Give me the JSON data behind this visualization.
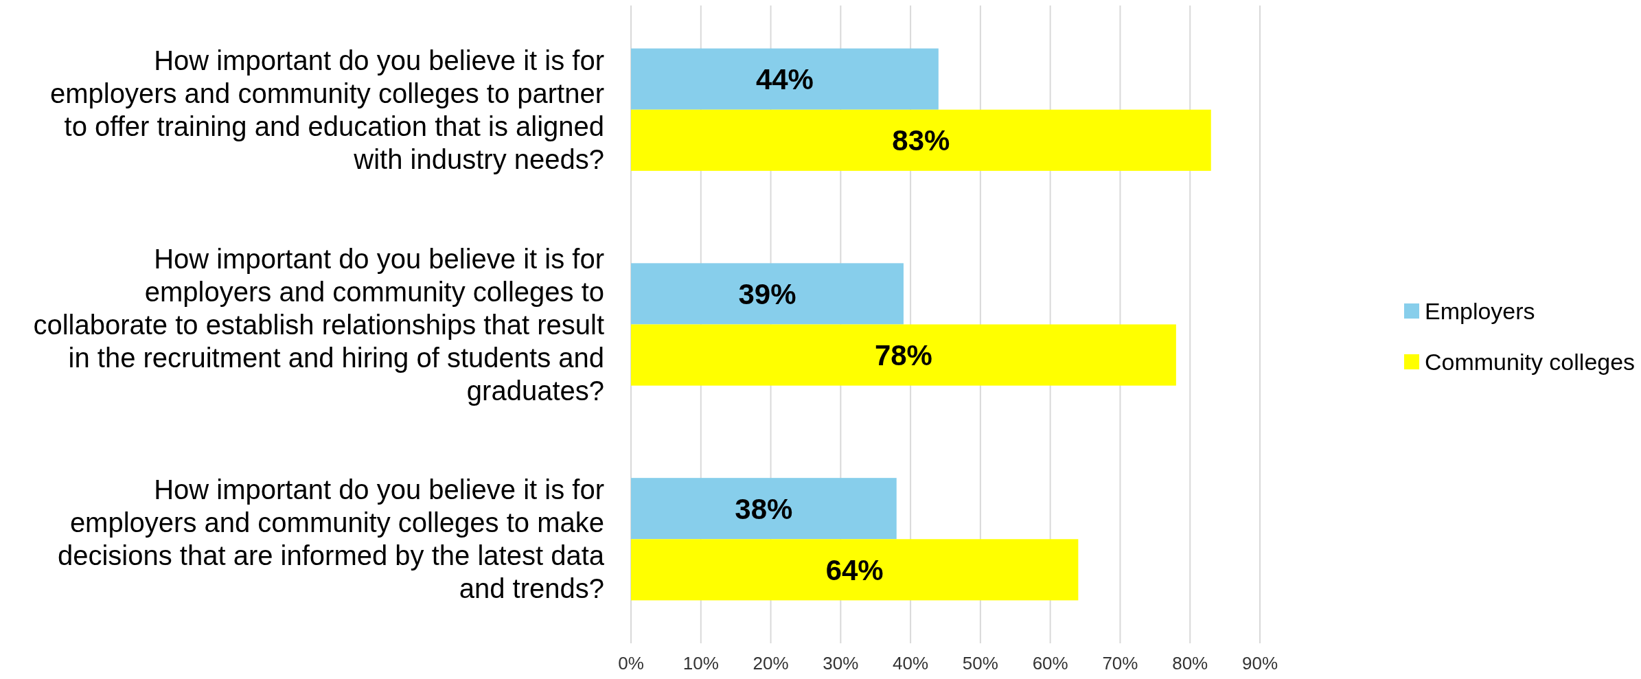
{
  "chart_data": {
    "type": "bar",
    "orientation": "horizontal",
    "categories": [
      "How important do you believe it is for employers and community colleges to partner to offer training and education that is aligned with industry needs?",
      "How important do you believe it is for employers and community colleges to collaborate to establish relationships that result in the recruitment and hiring of students and graduates?",
      "How important do you believe it is for employers and community colleges to make decisions that are informed by the latest data and trends?"
    ],
    "series": [
      {
        "name": "Employers",
        "color": "#87ceeb",
        "values": [
          44,
          39,
          38
        ]
      },
      {
        "name": "Community colleges",
        "color": "#ffff00",
        "values": [
          83,
          78,
          64
        ]
      }
    ],
    "value_labels": [
      [
        "44%",
        "39%",
        "38%"
      ],
      [
        "83%",
        "78%",
        "64%"
      ]
    ],
    "xlim": [
      0,
      90
    ],
    "xticks": [
      {
        "value": 0,
        "label": "0%"
      },
      {
        "value": 10,
        "label": "10%"
      },
      {
        "value": 20,
        "label": "20%"
      },
      {
        "value": 30,
        "label": "30%"
      },
      {
        "value": 40,
        "label": "40%"
      },
      {
        "value": 50,
        "label": "50%"
      },
      {
        "value": 60,
        "label": "60%"
      },
      {
        "value": 70,
        "label": "70%"
      },
      {
        "value": 80,
        "label": "80%"
      },
      {
        "value": 90,
        "label": "90%"
      }
    ],
    "grid": "x",
    "legend": "right"
  }
}
